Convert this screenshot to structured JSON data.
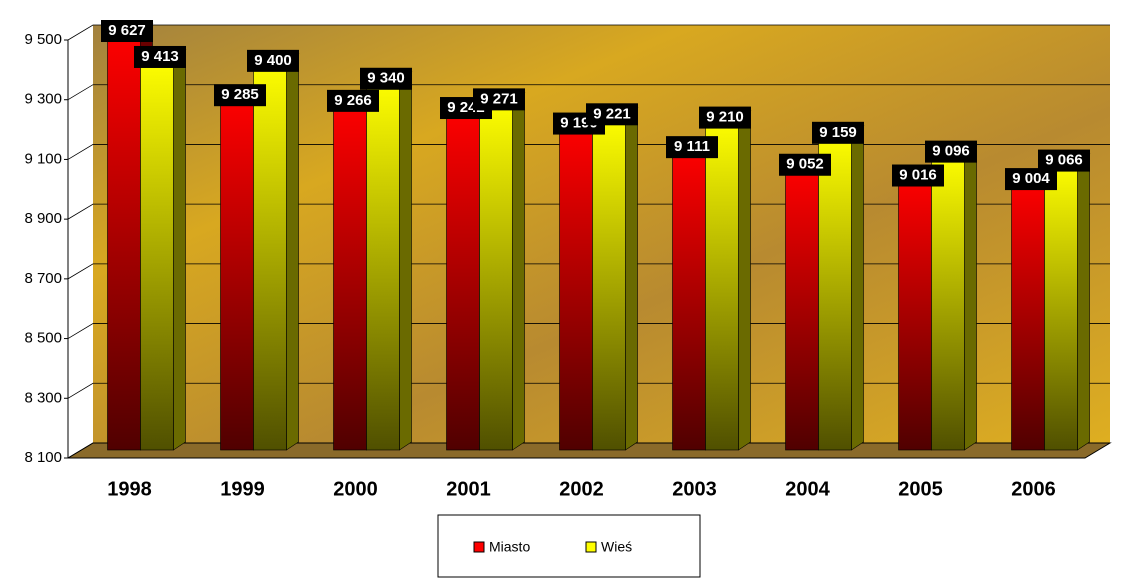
{
  "chart_data": {
    "type": "bar",
    "categories": [
      "1998",
      "1999",
      "2000",
      "2001",
      "2002",
      "2003",
      "2004",
      "2005",
      "2006"
    ],
    "series": [
      {
        "name": "Miasto",
        "color": "#ff0000",
        "values": [
          9627,
          9285,
          9266,
          9242,
          9190,
          9111,
          9052,
          9016,
          9004
        ],
        "value_labels": [
          "9 627",
          "9 285",
          "9 266",
          "9 242",
          "9 190",
          "9 111",
          "9 052",
          "9 016",
          "9 004"
        ]
      },
      {
        "name": "Wieś",
        "color": "#ffff00",
        "values": [
          9413,
          9400,
          9340,
          9271,
          9221,
          9210,
          9159,
          9096,
          9066
        ],
        "value_labels": [
          "9 413",
          "9 400",
          "9 340",
          "9 271",
          "9 221",
          "9 210",
          "9 159",
          "9 096",
          "9 066"
        ]
      }
    ],
    "ylim": [
      8100,
      9500
    ],
    "yticks": [
      {
        "value": 8100,
        "label": "8 100"
      },
      {
        "value": 8300,
        "label": "8 300"
      },
      {
        "value": 8500,
        "label": "8 500"
      },
      {
        "value": 8700,
        "label": "8 700"
      },
      {
        "value": 8900,
        "label": "8 900"
      },
      {
        "value": 9100,
        "label": "9 100"
      },
      {
        "value": 9300,
        "label": "9 300"
      },
      {
        "value": 9500,
        "label": "9 500"
      }
    ],
    "grid": true,
    "legend": "bottom"
  }
}
